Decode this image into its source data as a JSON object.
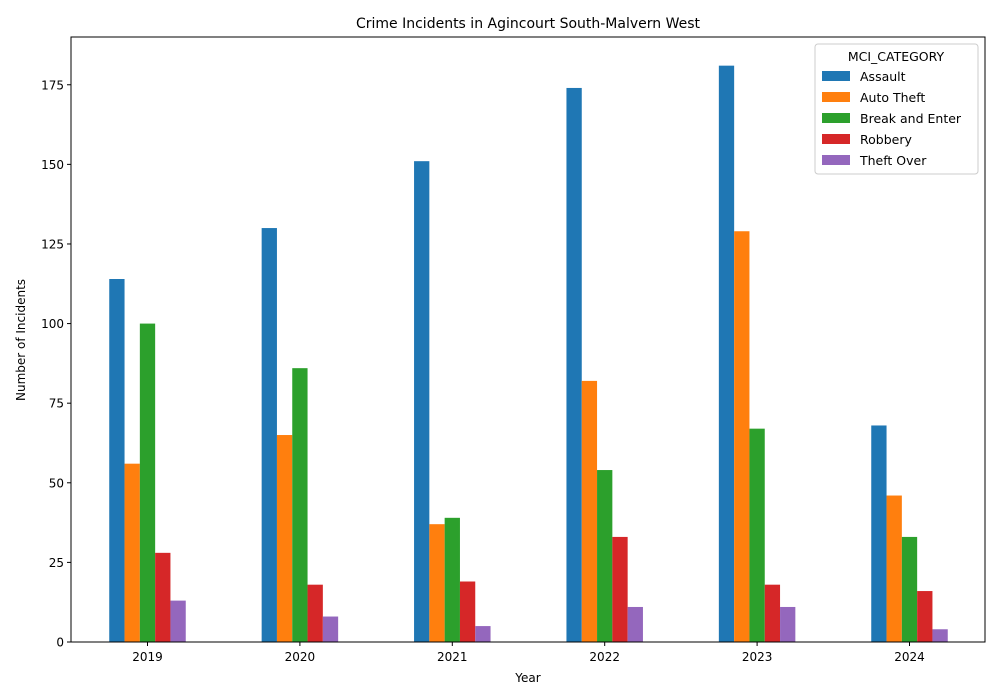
{
  "chart_data": {
    "type": "bar",
    "title": "Crime Incidents in Agincourt South-Malvern West",
    "xlabel": "Year",
    "ylabel": "Number of Incidents",
    "categories": [
      "2019",
      "2020",
      "2021",
      "2022",
      "2023",
      "2024"
    ],
    "ylim": [
      0,
      190
    ],
    "yticks": [
      0,
      25,
      50,
      75,
      100,
      125,
      150,
      175
    ],
    "legend_title": "MCI_CATEGORY",
    "legend_position": "top-right",
    "grid": false,
    "series": [
      {
        "name": "Assault",
        "color": "#1f77b4",
        "values": [
          114,
          130,
          151,
          174,
          181,
          68
        ]
      },
      {
        "name": "Auto Theft",
        "color": "#ff7f0e",
        "values": [
          56,
          65,
          37,
          82,
          129,
          46
        ]
      },
      {
        "name": "Break and Enter",
        "color": "#2ca02c",
        "values": [
          100,
          86,
          39,
          54,
          67,
          33
        ]
      },
      {
        "name": "Robbery",
        "color": "#d62728",
        "values": [
          28,
          18,
          19,
          33,
          18,
          16
        ]
      },
      {
        "name": "Theft Over",
        "color": "#9467bd",
        "values": [
          13,
          8,
          5,
          11,
          11,
          4
        ]
      }
    ]
  }
}
